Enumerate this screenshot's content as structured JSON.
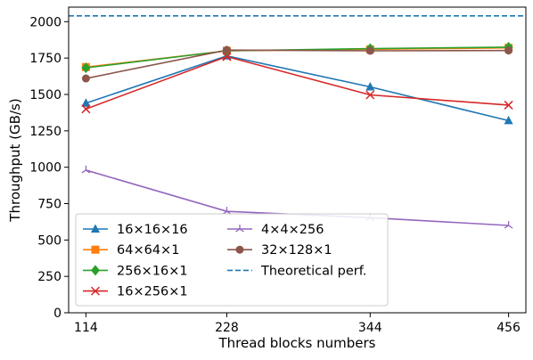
{
  "chart_data": {
    "type": "line",
    "title": "",
    "xlabel": "Thread blocks numbers",
    "ylabel": "Throughput (GB/s)",
    "x": [
      114,
      228,
      344,
      456
    ],
    "x_tick_labels": [
      "114",
      "228",
      "344",
      "456"
    ],
    "ylim": [
      0,
      2100
    ],
    "y_ticks": [
      0,
      250,
      500,
      750,
      1000,
      1250,
      1500,
      1750,
      2000
    ],
    "grid": false,
    "legend_position": "lower-left",
    "series": [
      {
        "name": "16×16×16",
        "values": [
          1440,
          1765,
          1552,
          1320
        ],
        "color": "#1f77b4",
        "marker": "triangle"
      },
      {
        "name": "64×64×1",
        "values": [
          1688,
          1800,
          1810,
          1820
        ],
        "color": "#ff7f0e",
        "marker": "square"
      },
      {
        "name": "256×16×1",
        "values": [
          1683,
          1800,
          1815,
          1825
        ],
        "color": "#2ca02c",
        "marker": "diamond"
      },
      {
        "name": "16×256×1",
        "values": [
          1400,
          1760,
          1497,
          1427
        ],
        "color": "#d62728",
        "marker": "x"
      },
      {
        "name": "4×4×256",
        "values": [
          980,
          697,
          653,
          600
        ],
        "color": "#9467bd",
        "marker": "tri"
      },
      {
        "name": "32×128×1",
        "values": [
          1610,
          1805,
          1800,
          1802
        ],
        "color": "#8c564b",
        "marker": "circle"
      }
    ],
    "reference_line": {
      "name": "Theoretical perf.",
      "value": 2040,
      "color": "#1f77b4",
      "style": "dashed"
    }
  }
}
